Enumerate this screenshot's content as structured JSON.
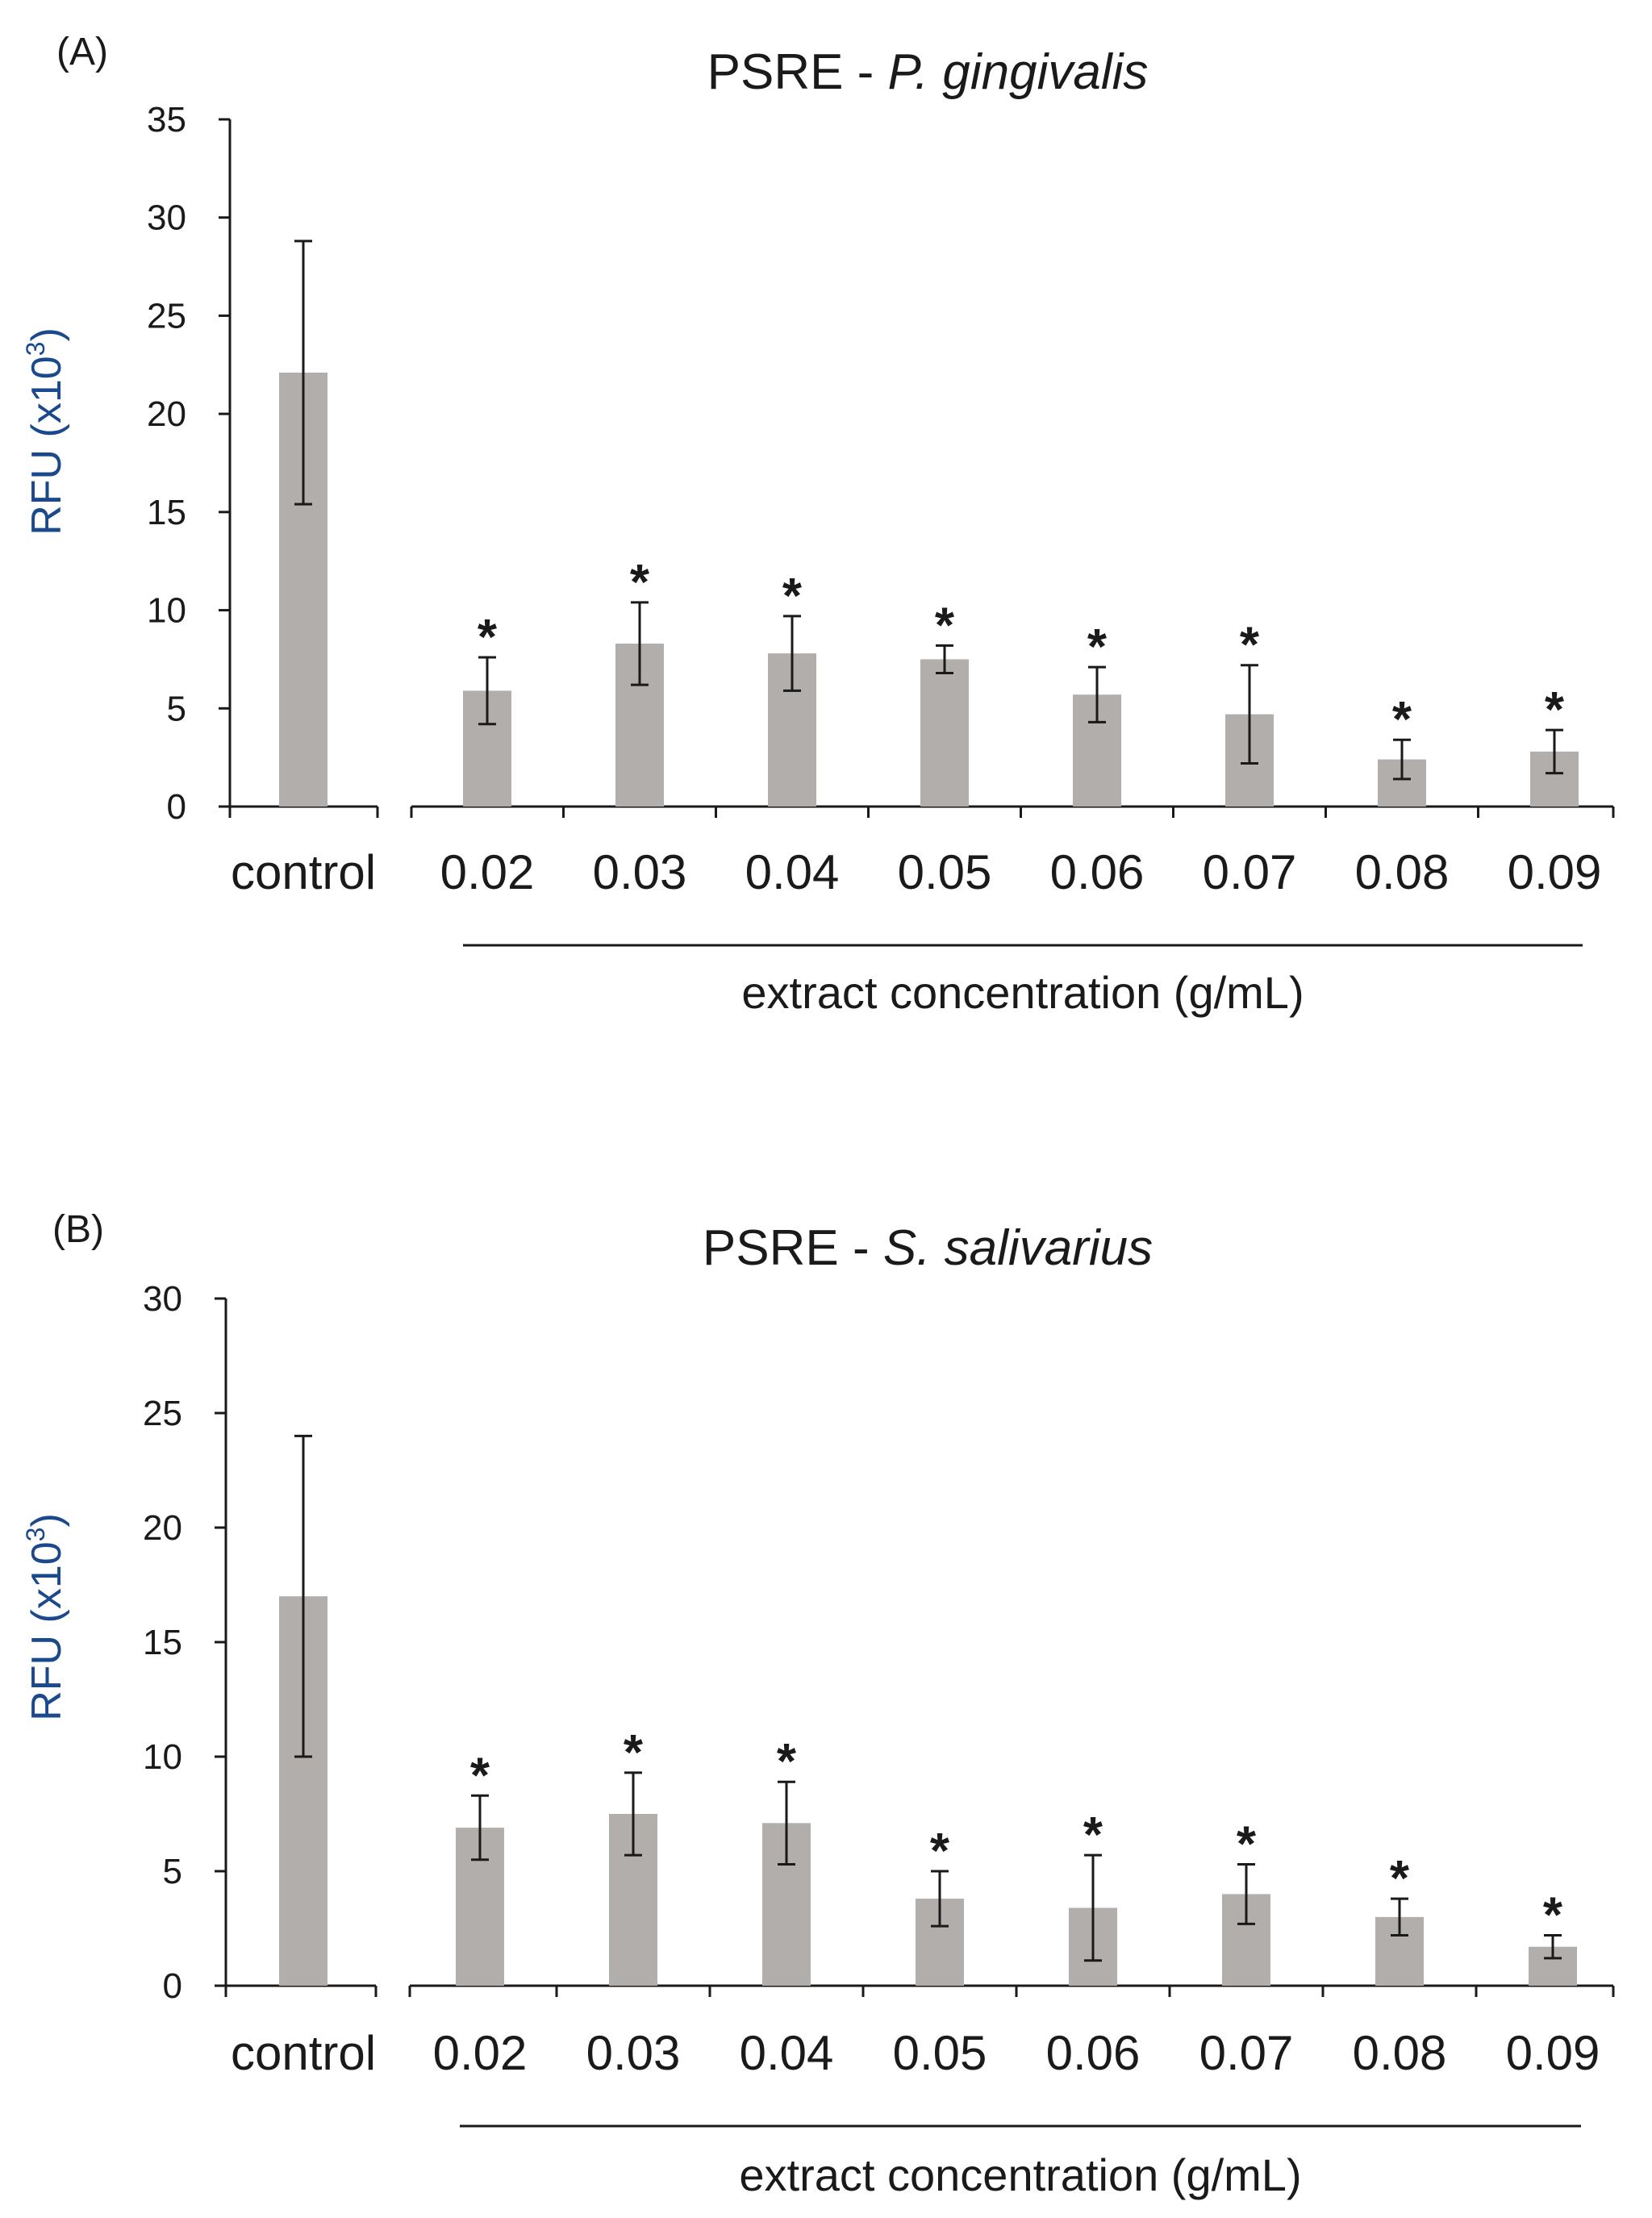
{
  "chart_data": [
    {
      "type": "bar",
      "panel_label": "(A)",
      "title": {
        "prefix": "PSRE - ",
        "organism": "P. gingivalis"
      },
      "ylabel": "RFU (x10",
      "ylabel_sup": "3",
      "ylabel_close": ")",
      "xlabel": "extract concentration (g/mL)",
      "ylim": [
        0,
        35
      ],
      "yticks": [
        "0",
        "5",
        "10",
        "15",
        "20",
        "25",
        "30",
        "35"
      ],
      "ytick_values": [
        0,
        5,
        10,
        15,
        20,
        25,
        30,
        35
      ],
      "categories": [
        "control",
        "0.02",
        "0.03",
        "0.04",
        "0.05",
        "0.06",
        "0.07",
        "0.08",
        "0.09"
      ],
      "values": [
        22.1,
        5.9,
        8.3,
        7.8,
        7.5,
        5.7,
        4.7,
        2.4,
        2.8
      ],
      "errors": [
        6.7,
        1.7,
        2.1,
        1.9,
        0.7,
        1.4,
        2.5,
        1.0,
        1.1
      ],
      "significance": [
        "",
        "*",
        "*",
        "*",
        "*",
        "*",
        "*",
        "*",
        "*"
      ],
      "bar_color": "#b1aeab"
    },
    {
      "type": "bar",
      "panel_label": "(B)",
      "title": {
        "prefix": "PSRE - ",
        "organism": "S. salivarius"
      },
      "ylabel": "RFU (x10",
      "ylabel_sup": "3",
      "ylabel_close": ")",
      "xlabel": "extract concentration (g/mL)",
      "ylim": [
        0,
        30
      ],
      "yticks": [
        "0",
        "5",
        "10",
        "15",
        "20",
        "25",
        "30"
      ],
      "ytick_values": [
        0,
        5,
        10,
        15,
        20,
        25,
        30
      ],
      "categories": [
        "control",
        "0.02",
        "0.03",
        "0.04",
        "0.05",
        "0.06",
        "0.07",
        "0.08",
        "0.09"
      ],
      "values": [
        17.0,
        6.9,
        7.5,
        7.1,
        3.8,
        3.4,
        4.0,
        3.0,
        1.7
      ],
      "errors": [
        7.0,
        1.4,
        1.8,
        1.8,
        1.2,
        2.3,
        1.3,
        0.8,
        0.5
      ],
      "significance": [
        "",
        "*",
        "*",
        "*",
        "*",
        "*",
        "*",
        "*",
        "*"
      ],
      "bar_color": "#b1aeab"
    }
  ]
}
